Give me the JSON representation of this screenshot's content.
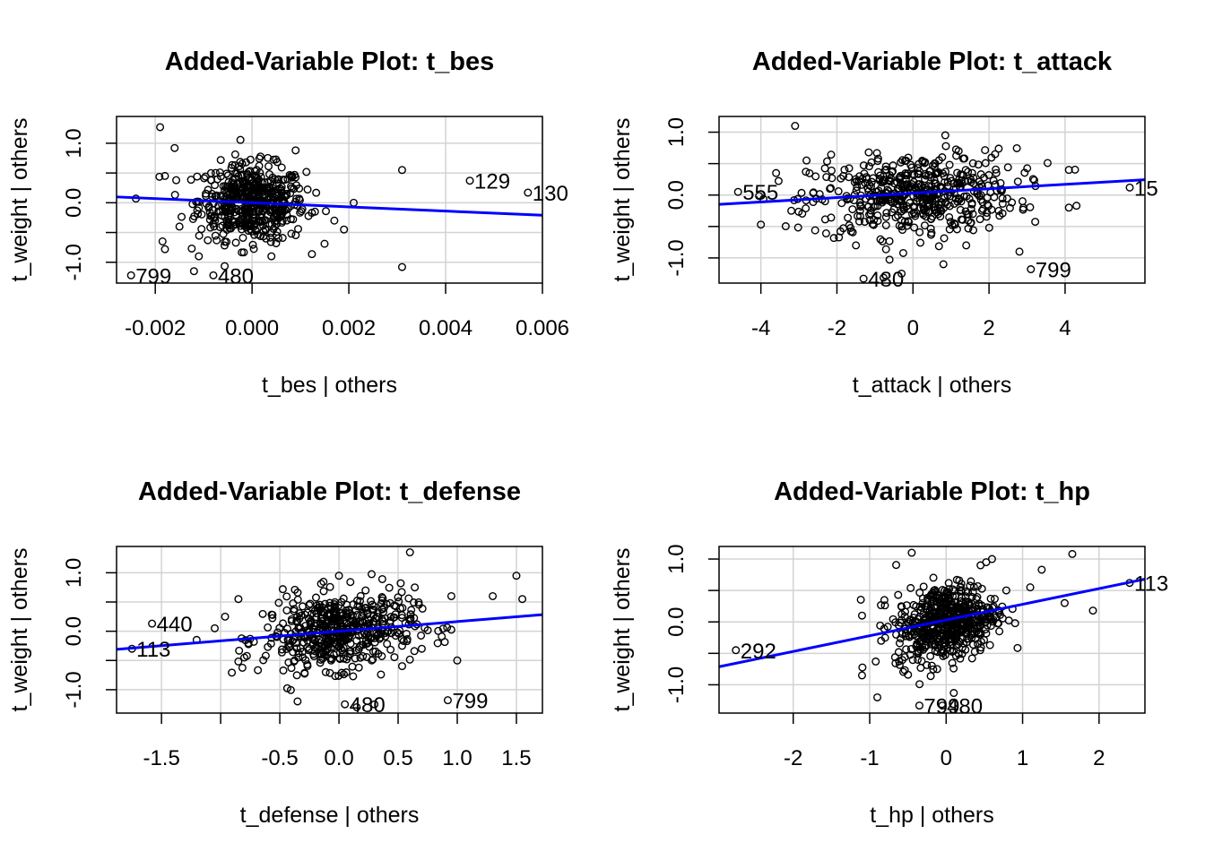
{
  "chart_data": [
    {
      "type": "scatter",
      "title": "Added-Variable Plot: t_bes",
      "xlabel": "t_bes | others",
      "ylabel": "t_weight  | others",
      "xlim": [
        -0.0028,
        0.006
      ],
      "ylim": [
        -1.35,
        1.45
      ],
      "xticks": [
        -0.002,
        0.0,
        0.002,
        0.004,
        0.006
      ],
      "xtick_labels": [
        "-0.002",
        "0.000",
        "0.002",
        "0.004",
        "0.006"
      ],
      "yticks": [
        -1.0,
        0.0,
        1.0
      ],
      "ytick_labels": [
        "-1.0",
        "0.0",
        "1.0"
      ],
      "grid": true,
      "regression_line": {
        "intercept": 0.0,
        "slope": -35,
        "color": "#0000ff"
      },
      "cloud": {
        "center": [
          0.0,
          0.0
        ],
        "spread": [
          0.00055,
          0.32
        ],
        "n": 520
      },
      "outliers": [
        {
          "x": -0.0019,
          "y": 1.27
        },
        {
          "x": -0.0016,
          "y": 0.92
        },
        {
          "x": -0.0018,
          "y": 0.45
        },
        {
          "x": -0.00185,
          "y": -0.65
        },
        {
          "x": -0.0018,
          "y": -0.78
        },
        {
          "x": -0.0011,
          "y": -0.9
        },
        {
          "x": -0.0012,
          "y": -1.15
        },
        {
          "x": -0.0024,
          "y": 0.07
        },
        {
          "x": 0.0009,
          "y": 0.88
        },
        {
          "x": 0.0017,
          "y": -0.3
        },
        {
          "x": 0.0019,
          "y": -0.45
        },
        {
          "x": 0.0021,
          "y": 0.0
        },
        {
          "x": 0.0031,
          "y": 0.55
        },
        {
          "x": 0.0031,
          "y": -1.08
        },
        {
          "x": 0.0004,
          "y": -0.9
        },
        {
          "x": -0.0015,
          "y": -0.4
        },
        {
          "x": 0.0013,
          "y": -0.15
        }
      ],
      "labeled_points": [
        {
          "label": "799",
          "x": -0.0025,
          "y": -1.22
        },
        {
          "label": "480",
          "x": -0.0008,
          "y": -1.22
        },
        {
          "label": "129",
          "x": 0.0045,
          "y": 0.37
        },
        {
          "label": "130",
          "x": 0.0057,
          "y": 0.17
        }
      ]
    },
    {
      "type": "scatter",
      "title": "Added-Variable Plot: t_attack",
      "xlabel": "t_attack | others",
      "ylabel": "t_weight  | others",
      "xlim": [
        -5.1,
        6.1
      ],
      "ylim": [
        -1.4,
        1.25
      ],
      "xticks": [
        -4,
        -2,
        0,
        2,
        4
      ],
      "xtick_labels": [
        "-4",
        "-2",
        "0",
        "2",
        "4"
      ],
      "yticks": [
        -1.0,
        0.0,
        1.0
      ],
      "ytick_labels": [
        "-1.0",
        "0.0",
        "1.0"
      ],
      "grid": true,
      "regression_line": {
        "intercept": 0.03,
        "slope": 0.035,
        "color": "#0000ff"
      },
      "cloud": {
        "center": [
          0.0,
          0.0
        ],
        "spread": [
          1.35,
          0.32
        ],
        "n": 520
      },
      "outliers": [
        {
          "x": -3.1,
          "y": 1.1
        },
        {
          "x": -4.0,
          "y": -0.47
        },
        {
          "x": -2.8,
          "y": 0.55
        },
        {
          "x": 0.85,
          "y": 0.95
        },
        {
          "x": 0.8,
          "y": -1.1
        },
        {
          "x": 1.4,
          "y": -0.8
        },
        {
          "x": 2.8,
          "y": -0.9
        },
        {
          "x": 4.1,
          "y": 0.4
        },
        {
          "x": 4.1,
          "y": -0.2
        },
        {
          "x": 4.3,
          "y": -0.17
        },
        {
          "x": -3.6,
          "y": 0.35
        },
        {
          "x": 1.2,
          "y": 0.7
        },
        {
          "x": -1.5,
          "y": -0.8
        },
        {
          "x": -0.3,
          "y": -1.25
        },
        {
          "x": -3.2,
          "y": -0.25
        }
      ],
      "labeled_points": [
        {
          "label": "555",
          "x": -4.6,
          "y": 0.05
        },
        {
          "label": "480",
          "x": -1.3,
          "y": -1.33
        },
        {
          "label": "799",
          "x": 3.1,
          "y": -1.18
        },
        {
          "label": "15",
          "x": 5.7,
          "y": 0.12
        }
      ]
    },
    {
      "type": "scatter",
      "title": "Added-Variable Plot: t_defense",
      "xlabel": "t_defense | others",
      "ylabel": "t_weight  | others",
      "xlim": [
        -1.88,
        1.72
      ],
      "ylim": [
        -1.4,
        1.45
      ],
      "xticks": [
        -1.5,
        -1.0,
        -0.5,
        0.0,
        0.5,
        1.0,
        1.5
      ],
      "xtick_labels": [
        "-1.5",
        "",
        "-0.5",
        "0.0",
        "0.5",
        "1.0",
        "1.5"
      ],
      "yticks": [
        -1.0,
        0.0,
        1.0
      ],
      "ytick_labels": [
        "-1.0",
        "0.0",
        "1.0"
      ],
      "grid": true,
      "regression_line": {
        "intercept": 0.0,
        "slope": 0.165,
        "color": "#0000ff"
      },
      "cloud": {
        "center": [
          0.0,
          0.0
        ],
        "spread": [
          0.32,
          0.32
        ],
        "n": 520
      },
      "outliers": [
        {
          "x": 0.6,
          "y": 1.35
        },
        {
          "x": 1.5,
          "y": 0.95
        },
        {
          "x": 1.55,
          "y": 0.55
        },
        {
          "x": 1.3,
          "y": 0.6
        },
        {
          "x": 1.0,
          "y": -0.5
        },
        {
          "x": 0.3,
          "y": -1.25
        },
        {
          "x": -0.85,
          "y": 0.55
        },
        {
          "x": -0.8,
          "y": -0.45
        },
        {
          "x": -1.05,
          "y": 0.05
        },
        {
          "x": 0.95,
          "y": 0.6
        },
        {
          "x": 0.0,
          "y": 0.95
        },
        {
          "x": 0.7,
          "y": -0.3
        },
        {
          "x": -0.35,
          "y": -1.2
        },
        {
          "x": 0.15,
          "y": -1.3
        }
      ],
      "labeled_points": [
        {
          "label": "440",
          "x": -1.58,
          "y": 0.13
        },
        {
          "label": "113",
          "x": -1.75,
          "y": -0.3
        },
        {
          "label": "480",
          "x": 0.05,
          "y": -1.25
        },
        {
          "label": "799",
          "x": 0.92,
          "y": -1.18
        }
      ]
    },
    {
      "type": "scatter",
      "title": "Added-Variable Plot: t_hp",
      "xlabel": "t_hp | others",
      "ylabel": "t_weight  | others",
      "xlim": [
        -2.97,
        2.6
      ],
      "ylim": [
        -1.45,
        1.2
      ],
      "xticks": [
        -2,
        -1,
        0,
        1,
        2
      ],
      "xtick_labels": [
        "-2",
        "-1",
        "0",
        "1",
        "2"
      ],
      "yticks": [
        -1.0,
        0.0,
        1.0
      ],
      "ytick_labels": [
        "-1.0",
        "0.0",
        "1.0"
      ],
      "grid": true,
      "regression_line": {
        "intercept": 0.03,
        "slope": 0.25,
        "color": "#0000ff"
      },
      "cloud": {
        "center": [
          0.0,
          0.0
        ],
        "spread": [
          0.33,
          0.3
        ],
        "n": 560
      },
      "outliers": [
        {
          "x": -0.45,
          "y": 1.1
        },
        {
          "x": 1.65,
          "y": 1.08
        },
        {
          "x": 0.6,
          "y": 1.0
        },
        {
          "x": 1.25,
          "y": 0.83
        },
        {
          "x": 1.92,
          "y": 0.18
        },
        {
          "x": 1.55,
          "y": 0.3
        },
        {
          "x": -1.1,
          "y": -0.85
        },
        {
          "x": -1.1,
          "y": 0.1
        },
        {
          "x": 0.45,
          "y": 0.9
        },
        {
          "x": -0.9,
          "y": -1.2
        },
        {
          "x": 0.1,
          "y": -1.13
        },
        {
          "x": 1.1,
          "y": 0.55
        },
        {
          "x": -0.85,
          "y": -0.3
        }
      ],
      "labeled_points": [
        {
          "label": "292",
          "x": -2.75,
          "y": -0.45
        },
        {
          "label": "799",
          "x": -0.35,
          "y": -1.33
        },
        {
          "label": "480",
          "x": -0.05,
          "y": -1.33
        },
        {
          "label": "113",
          "x": 2.4,
          "y": 0.62
        }
      ]
    }
  ]
}
